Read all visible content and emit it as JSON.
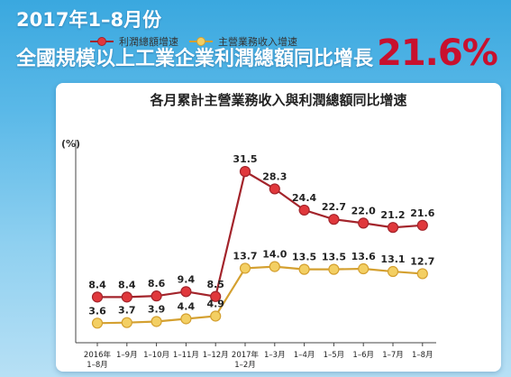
{
  "header": {
    "date_line": "2017年1–8月份",
    "headline": "全國規模以上工業企業利潤總額同比增長",
    "headline_value": "21.6%"
  },
  "colors": {
    "profit_line": "#a3242b",
    "profit_marker": "#e0383c",
    "revenue_line": "#d4a030",
    "revenue_marker": "#f3cf63",
    "headline_value": "#c8102e"
  },
  "chart_data": {
    "type": "line",
    "title": "各月累計主營業務收入與利潤總額同比增速",
    "ylabel": "(%)",
    "categories": [
      "2016年\n1–8月",
      "1–9月",
      "1–10月",
      "1–11月",
      "1–12月",
      "2017年\n1–2月",
      "1–3月",
      "1–4月",
      "1–5月",
      "1–6月",
      "1–7月",
      "1–8月"
    ],
    "series": [
      {
        "name": "利潤總額增速",
        "values": [
          8.4,
          8.4,
          8.6,
          9.4,
          8.5,
          31.5,
          28.3,
          24.4,
          22.7,
          22.0,
          21.2,
          21.6
        ]
      },
      {
        "name": "主營業務收入增速",
        "values": [
          3.6,
          3.7,
          3.9,
          4.4,
          4.9,
          13.7,
          14.0,
          13.5,
          13.5,
          13.6,
          13.1,
          12.7
        ]
      }
    ],
    "value_labels": [
      [
        "8.4",
        "8.4",
        "8.6",
        "9.4",
        "8.5",
        "31.5",
        "28.3",
        "24.4",
        "22.7",
        "22.0",
        "21.2",
        "21.6"
      ],
      [
        "3.6",
        "3.7",
        "3.9",
        "4.4",
        "4.9",
        "13.7",
        "14.0",
        "13.5",
        "13.5",
        "13.6",
        "13.1",
        "12.7"
      ]
    ],
    "ylim": [
      0,
      36
    ],
    "grid": false,
    "legend_position": "top-left"
  }
}
